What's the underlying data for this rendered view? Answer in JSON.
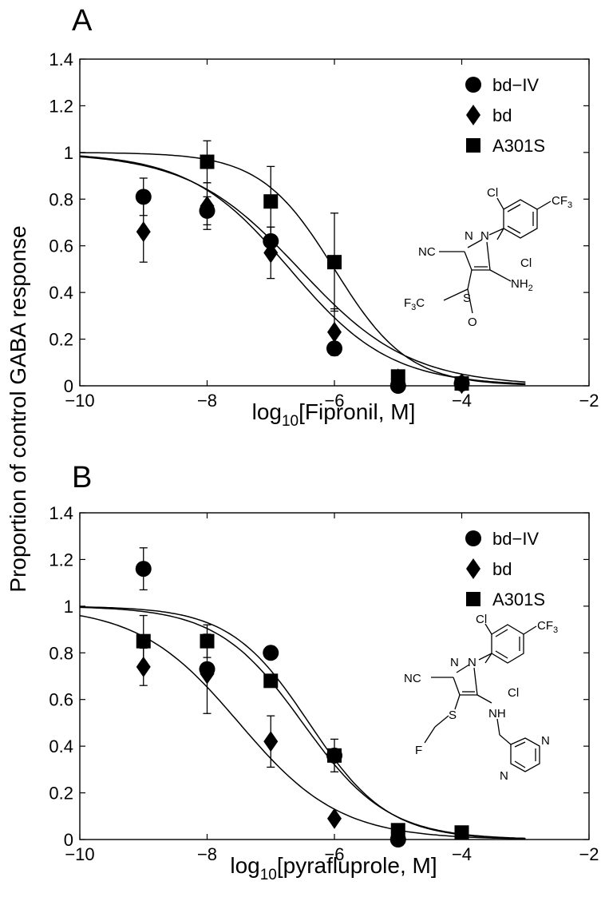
{
  "figure": {
    "ylabel": "Proportion of control GABA response"
  },
  "chart_data": [
    {
      "type": "scatter",
      "panel": "A",
      "xlabel_prefix": "log",
      "xlabel_sub": "10",
      "xlabel_suffix": "[Fipronil, M]",
      "xlim": [
        -10,
        -2
      ],
      "ylim": [
        0,
        1.4
      ],
      "xticks": [
        -10,
        -8,
        -6,
        -4,
        -2
      ],
      "yticks": [
        0,
        0.2,
        0.4,
        0.6,
        0.8,
        1,
        1.2,
        1.4
      ],
      "xtick_labels": [
        "−10",
        "−8",
        "−6",
        "−4",
        "−2"
      ],
      "ytick_labels": [
        "0",
        "0.2",
        "0.4",
        "0.6",
        "0.8",
        "1",
        "1.2",
        "1.4"
      ],
      "grid": false,
      "legend_position": "top-right",
      "series": [
        {
          "name": "bd−IV",
          "marker": "circle",
          "x": [
            -9,
            -8,
            -7,
            -6,
            -5,
            -4
          ],
          "y": [
            0.81,
            0.75,
            0.62,
            0.16,
            0.0,
            0.01
          ],
          "err": [
            0.08,
            0.06,
            0.06,
            0.0,
            0.02,
            0.02
          ],
          "fit": {
            "log_ic50": -6.7,
            "hill": 0.55
          }
        },
        {
          "name": "bd",
          "marker": "diamond",
          "x": [
            -9,
            -8,
            -7,
            -6,
            -5,
            -4
          ],
          "y": [
            0.66,
            0.77,
            0.57,
            0.23,
            0.03,
            0.01
          ],
          "err": [
            0.13,
            0.1,
            0.11,
            0.1,
            0.02,
            0.02
          ],
          "fit": {
            "log_ic50": -6.55,
            "hill": 0.5
          }
        },
        {
          "name": "A301S",
          "marker": "square",
          "x": [
            -8,
            -7,
            -6,
            -5,
            -4
          ],
          "y": [
            0.96,
            0.79,
            0.53,
            0.04,
            0.01
          ],
          "err": [
            0.09,
            0.15,
            0.21,
            0.02,
            0.01
          ],
          "fit": {
            "log_ic50": -6.0,
            "hill": 0.75
          }
        }
      ],
      "structure": {
        "atoms": [
          "Cl",
          "CF",
          "3",
          "N",
          "N",
          "NC",
          "Cl",
          "NH",
          "2",
          "F",
          "3",
          "C",
          "S",
          "O"
        ]
      }
    },
    {
      "type": "scatter",
      "panel": "B",
      "xlabel_prefix": "log",
      "xlabel_sub": "10",
      "xlabel_suffix": "[pyrafluprole, M]",
      "xlim": [
        -10,
        -2
      ],
      "ylim": [
        0,
        1.4
      ],
      "xticks": [
        -10,
        -8,
        -6,
        -4,
        -2
      ],
      "yticks": [
        0,
        0.2,
        0.4,
        0.6,
        0.8,
        1,
        1.2,
        1.4
      ],
      "xtick_labels": [
        "−10",
        "−8",
        "−6",
        "−4",
        "−2"
      ],
      "ytick_labels": [
        "0",
        "0.2",
        "0.4",
        "0.6",
        "0.8",
        "1",
        "1.2",
        "1.4"
      ],
      "grid": false,
      "legend_position": "top-right",
      "series": [
        {
          "name": "bd−IV",
          "marker": "circle",
          "x": [
            -9,
            -8,
            -7,
            -6,
            -5
          ],
          "y": [
            1.16,
            0.73,
            0.8,
            0.36,
            0.0
          ],
          "err": [
            0.09,
            0.0,
            0.0,
            0.0,
            0.0
          ],
          "fit": {
            "log_ic50": -6.4,
            "hill": 0.7
          }
        },
        {
          "name": "bd",
          "marker": "diamond",
          "x": [
            -9,
            -8,
            -7,
            -6,
            -5
          ],
          "y": [
            0.74,
            0.71,
            0.42,
            0.09,
            0.01
          ],
          "err": [
            0.08,
            0.17,
            0.11,
            0.0,
            0.02
          ],
          "fit": {
            "log_ic50": -7.5,
            "hill": 0.55
          }
        },
        {
          "name": "A301S",
          "marker": "square",
          "x": [
            -9,
            -8,
            -7,
            -6,
            -5,
            -4
          ],
          "y": [
            0.85,
            0.85,
            0.68,
            0.36,
            0.04,
            0.03
          ],
          "err": [
            0.11,
            0.07,
            0.0,
            0.07,
            0.02,
            0.0
          ],
          "fit": {
            "log_ic50": -6.5,
            "hill": 0.65
          }
        }
      ],
      "structure": {
        "atoms": [
          "Cl",
          "CF",
          "3",
          "N",
          "N",
          "NC",
          "Cl",
          "S",
          "NH",
          "F",
          "N",
          "N"
        ]
      }
    }
  ]
}
